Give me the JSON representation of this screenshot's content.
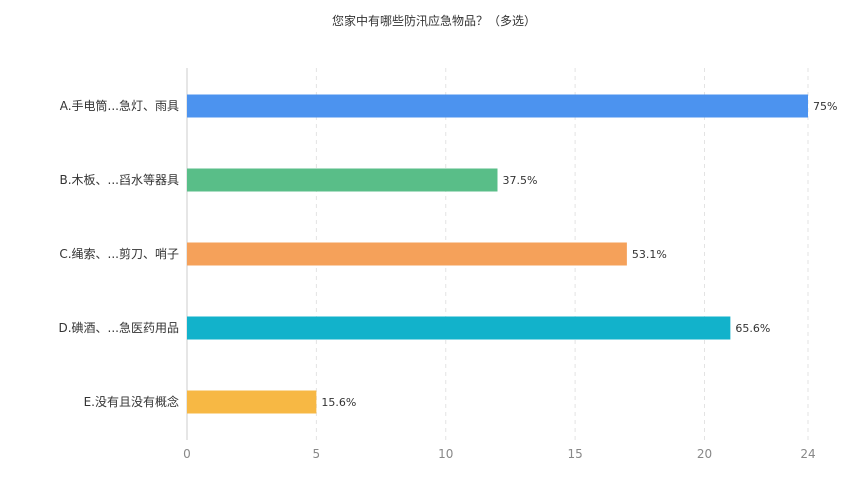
{
  "chart_data": {
    "type": "bar",
    "orientation": "horizontal",
    "title": "您家中有哪些防汛应急物品？（多选）",
    "categories": [
      "A.手电筒...急灯、雨具",
      "B.木板、...舀水等器具",
      "C.绳索、...剪刀、哨子",
      "D.碘酒、...急医药用品",
      "E.没有且没有概念"
    ],
    "values": [
      24,
      12,
      17,
      21,
      5
    ],
    "data_labels": [
      "75%",
      "37.5%",
      "53.1%",
      "65.6%",
      "15.6%"
    ],
    "colors": [
      "#4C93EF",
      "#59BE88",
      "#F5A15A",
      "#12B2CB",
      "#F7B844"
    ],
    "xlim": [
      0,
      24
    ],
    "xticks": [
      "0",
      "5",
      "10",
      "15",
      "20",
      "24"
    ],
    "xtick_values": [
      0,
      5,
      10,
      15,
      20,
      24
    ],
    "xlabel": "",
    "ylabel": "",
    "grid": true
  }
}
